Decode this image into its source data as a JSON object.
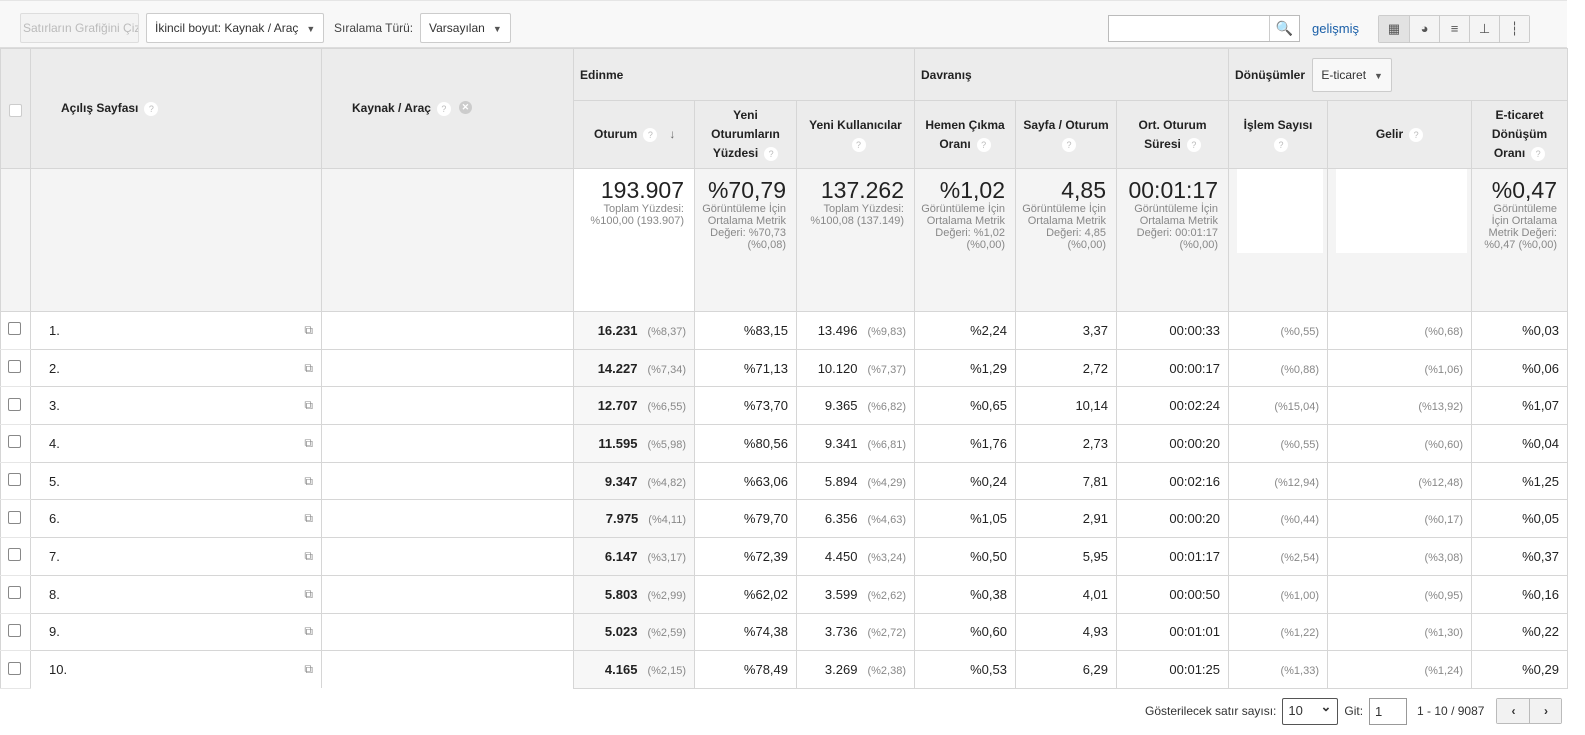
{
  "toolbar": {
    "plot_rows": "Satırların Grafiğini Çiz",
    "secondary_dim": "İkincil boyut: Kaynak / Araç",
    "sort_label": "Sıralama Türü:",
    "sort_value": "Varsayılan",
    "search_placeholder": "",
    "advanced": "gelişmiş"
  },
  "header": {
    "landing": "Açılış Sayfası",
    "source": "Kaynak / Araç",
    "acquisition": "Edinme",
    "behavior": "Davranış",
    "conversions": "Dönüşümler",
    "conv_select": "E-ticaret",
    "cols": [
      "Oturum",
      "Yeni Oturumların Yüzdesi",
      "Yeni Kullanıcılar",
      "Hemen Çıkma Oranı",
      "Sayfa / Oturum",
      "Ort. Oturum Süresi",
      "İşlem Sayısı",
      "Gelir",
      "E-ticaret Dönüşüm Oranı"
    ]
  },
  "summary": [
    {
      "value": "193.907",
      "note": "Toplam Yüzdesi: %100,00 (193.907)"
    },
    {
      "value": "%70,79",
      "note": "Görüntüleme İçin Ortalama Metrik Değeri: %70,73 (%0,08)"
    },
    {
      "value": "137.262",
      "note": "Toplam Yüzdesi: %100,08 (137.149)"
    },
    {
      "value": "%1,02",
      "note": "Görüntüleme İçin Ortalama Metrik Değeri: %1,02 (%0,00)"
    },
    {
      "value": "4,85",
      "note": "Görüntüleme İçin Ortalama Metrik Değeri: 4,85 (%0,00)"
    },
    {
      "value": "00:01:17",
      "note": "Görüntüleme İçin Ortalama Metrik Değeri: 00:01:17 (%0,00)"
    },
    {
      "value": "",
      "note": ""
    },
    {
      "value": "",
      "note": ""
    },
    {
      "value": "%0,47",
      "note": "Görüntüleme İçin Ortalama Metrik Değeri: %0,47 (%0,00)"
    }
  ],
  "rows": [
    {
      "n": "1.",
      "s": "16.231",
      "sp": "(%8,37)",
      "nsp": "%83,15",
      "nu": "13.496",
      "nup": "(%9,83)",
      "br": "%2,24",
      "pps": "3,37",
      "dur": "00:00:33",
      "tp": "(%0,55)",
      "rp": "(%0,68)",
      "cr": "%0,03"
    },
    {
      "n": "2.",
      "s": "14.227",
      "sp": "(%7,34)",
      "nsp": "%71,13",
      "nu": "10.120",
      "nup": "(%7,37)",
      "br": "%1,29",
      "pps": "2,72",
      "dur": "00:00:17",
      "tp": "(%0,88)",
      "rp": "(%1,06)",
      "cr": "%0,06"
    },
    {
      "n": "3.",
      "s": "12.707",
      "sp": "(%6,55)",
      "nsp": "%73,70",
      "nu": "9.365",
      "nup": "(%6,82)",
      "br": "%0,65",
      "pps": "10,14",
      "dur": "00:02:24",
      "tp": "(%15,04)",
      "rp": "(%13,92)",
      "cr": "%1,07"
    },
    {
      "n": "4.",
      "s": "11.595",
      "sp": "(%5,98)",
      "nsp": "%80,56",
      "nu": "9.341",
      "nup": "(%6,81)",
      "br": "%1,76",
      "pps": "2,73",
      "dur": "00:00:20",
      "tp": "(%0,55)",
      "rp": "(%0,60)",
      "cr": "%0,04"
    },
    {
      "n": "5.",
      "s": "9.347",
      "sp": "(%4,82)",
      "nsp": "%63,06",
      "nu": "5.894",
      "nup": "(%4,29)",
      "br": "%0,24",
      "pps": "7,81",
      "dur": "00:02:16",
      "tp": "(%12,94)",
      "rp": "(%12,48)",
      "cr": "%1,25"
    },
    {
      "n": "6.",
      "s": "7.975",
      "sp": "(%4,11)",
      "nsp": "%79,70",
      "nu": "6.356",
      "nup": "(%4,63)",
      "br": "%1,05",
      "pps": "2,91",
      "dur": "00:00:20",
      "tp": "(%0,44)",
      "rp": "(%0,17)",
      "cr": "%0,05"
    },
    {
      "n": "7.",
      "s": "6.147",
      "sp": "(%3,17)",
      "nsp": "%72,39",
      "nu": "4.450",
      "nup": "(%3,24)",
      "br": "%0,50",
      "pps": "5,95",
      "dur": "00:01:17",
      "tp": "(%2,54)",
      "rp": "(%3,08)",
      "cr": "%0,37"
    },
    {
      "n": "8.",
      "s": "5.803",
      "sp": "(%2,99)",
      "nsp": "%62,02",
      "nu": "3.599",
      "nup": "(%2,62)",
      "br": "%0,38",
      "pps": "4,01",
      "dur": "00:00:50",
      "tp": "(%1,00)",
      "rp": "(%0,95)",
      "cr": "%0,16"
    },
    {
      "n": "9.",
      "s": "5.023",
      "sp": "(%2,59)",
      "nsp": "%74,38",
      "nu": "3.736",
      "nup": "(%2,72)",
      "br": "%0,60",
      "pps": "4,93",
      "dur": "00:01:01",
      "tp": "(%1,22)",
      "rp": "(%1,30)",
      "cr": "%0,22"
    },
    {
      "n": "10.",
      "s": "4.165",
      "sp": "(%2,15)",
      "nsp": "%78,49",
      "nu": "3.269",
      "nup": "(%2,38)",
      "br": "%0,53",
      "pps": "6,29",
      "dur": "00:01:25",
      "tp": "(%1,33)",
      "rp": "(%1,24)",
      "cr": "%0,29"
    }
  ],
  "footer": {
    "rows_label": "Gösterilecek satır sayısı:",
    "rows_value": "10",
    "goto_label": "Git:",
    "goto_value": "1",
    "range": "1 - 10 / 9087"
  }
}
